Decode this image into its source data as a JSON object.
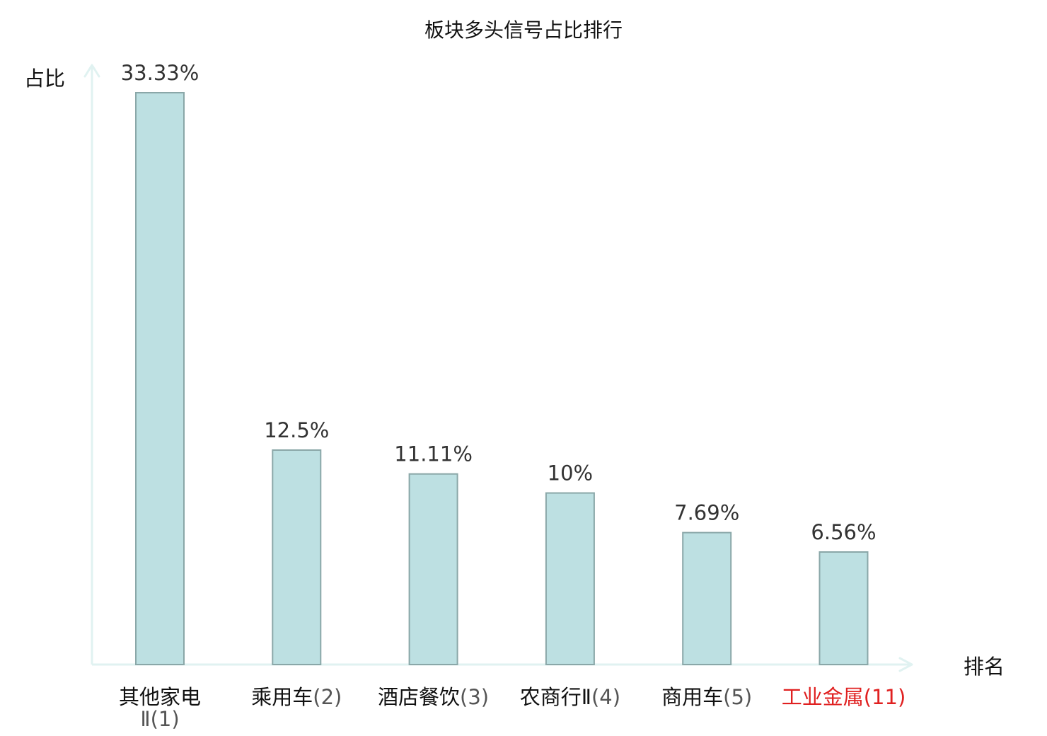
{
  "chart_data": {
    "type": "bar",
    "title": "板块多头信号占比排行",
    "ylabel": "占比",
    "xlabel": "排名",
    "categories": [
      {
        "name": "其他家电",
        "rank_label": "Ⅱ(1)",
        "value": 33.33,
        "value_label": "33.33%",
        "highlight": false
      },
      {
        "name": "乘用车",
        "rank_label": "(2)",
        "value": 12.5,
        "value_label": "12.5%",
        "highlight": false
      },
      {
        "name": "酒店餐饮",
        "rank_label": "(3)",
        "value": 11.11,
        "value_label": "11.11%",
        "highlight": false
      },
      {
        "name": "农商行Ⅱ",
        "rank_label": "(4)",
        "value": 10,
        "value_label": "10%",
        "highlight": false
      },
      {
        "name": "商用车",
        "rank_label": "(5)",
        "value": 7.69,
        "value_label": "7.69%",
        "highlight": false
      },
      {
        "name": "工业金属",
        "rank_label": "(11)",
        "value": 6.56,
        "value_label": "6.56%",
        "highlight": true
      }
    ],
    "ylim": [
      0,
      33.33
    ],
    "grid": false,
    "colors": {
      "bar_fill": "#bde0e2",
      "bar_stroke": "#8aa7a8",
      "axis": "#e0f2f1",
      "text": "#333333",
      "title": "#111111",
      "highlight": "#e02020",
      "category_text": "#111111",
      "rank_text": "#555555"
    }
  }
}
